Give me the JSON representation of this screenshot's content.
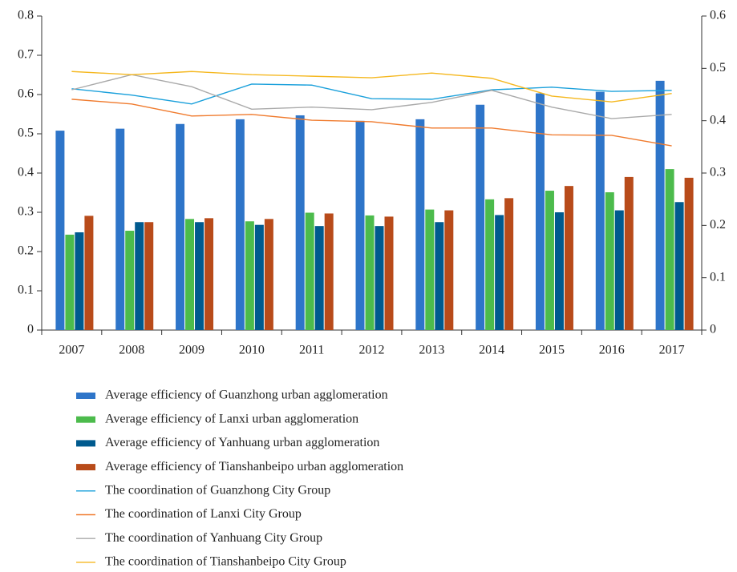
{
  "chart_data": {
    "type": "bar",
    "categories": [
      "2007",
      "2008",
      "2009",
      "2010",
      "2011",
      "2012",
      "2013",
      "2014",
      "2015",
      "2016",
      "2017"
    ],
    "ylim": [
      0,
      0.8
    ],
    "yticks": [
      0,
      0.1,
      0.2,
      0.3,
      0.4,
      0.5,
      0.6,
      0.7,
      0.8
    ],
    "y2lim": [
      0,
      0.6
    ],
    "y2ticks": [
      0,
      0.1,
      0.2,
      0.3,
      0.4,
      0.5,
      0.6
    ],
    "legend": "bottom",
    "series": [
      {
        "name": "Average efficiency of Guanzhong urban agglomeration",
        "type": "bar",
        "color": "#2e75c9",
        "values": [
          0.508,
          0.513,
          0.525,
          0.537,
          0.547,
          0.533,
          0.537,
          0.574,
          0.603,
          0.607,
          0.635
        ]
      },
      {
        "name": "Average efficiency of Lanxi urban agglomeration",
        "type": "bar",
        "color": "#4cbb4c",
        "values": [
          0.243,
          0.253,
          0.283,
          0.277,
          0.299,
          0.292,
          0.307,
          0.333,
          0.355,
          0.351,
          0.41
        ]
      },
      {
        "name": "Average efficiency of Yanhuang urban agglomeration",
        "type": "bar",
        "color": "#005a8e",
        "values": [
          0.249,
          0.275,
          0.275,
          0.268,
          0.265,
          0.265,
          0.275,
          0.293,
          0.3,
          0.305,
          0.326
        ]
      },
      {
        "name": "Average efficiency of Tianshanbeipo urban agglomeration",
        "type": "bar",
        "color": "#b84b1a",
        "values": [
          0.291,
          0.275,
          0.285,
          0.283,
          0.297,
          0.289,
          0.305,
          0.336,
          0.367,
          0.39,
          0.388
        ]
      },
      {
        "name": "The coordination of Guanzhong City Group",
        "type": "line",
        "axis": "y2",
        "color": "#1aa0db",
        "values": [
          0.461,
          0.449,
          0.432,
          0.47,
          0.468,
          0.442,
          0.441,
          0.459,
          0.464,
          0.456,
          0.458
        ]
      },
      {
        "name": "The coordination of Lanxi City Group",
        "type": "line",
        "axis": "y2",
        "color": "#f07b2e",
        "values": [
          0.441,
          0.432,
          0.409,
          0.412,
          0.401,
          0.398,
          0.386,
          0.386,
          0.373,
          0.372,
          0.352
        ]
      },
      {
        "name": "The coordination of Yanhuang City Group",
        "type": "line",
        "axis": "y2",
        "color": "#aaaaaa",
        "values": [
          0.459,
          0.488,
          0.465,
          0.422,
          0.426,
          0.421,
          0.435,
          0.458,
          0.426,
          0.404,
          0.412
        ]
      },
      {
        "name": "The coordination of Tianshanbeipo City Group",
        "type": "line",
        "axis": "y2",
        "color": "#f5b820",
        "values": [
          0.494,
          0.488,
          0.494,
          0.488,
          0.485,
          0.482,
          0.491,
          0.481,
          0.447,
          0.436,
          0.452
        ]
      }
    ]
  }
}
